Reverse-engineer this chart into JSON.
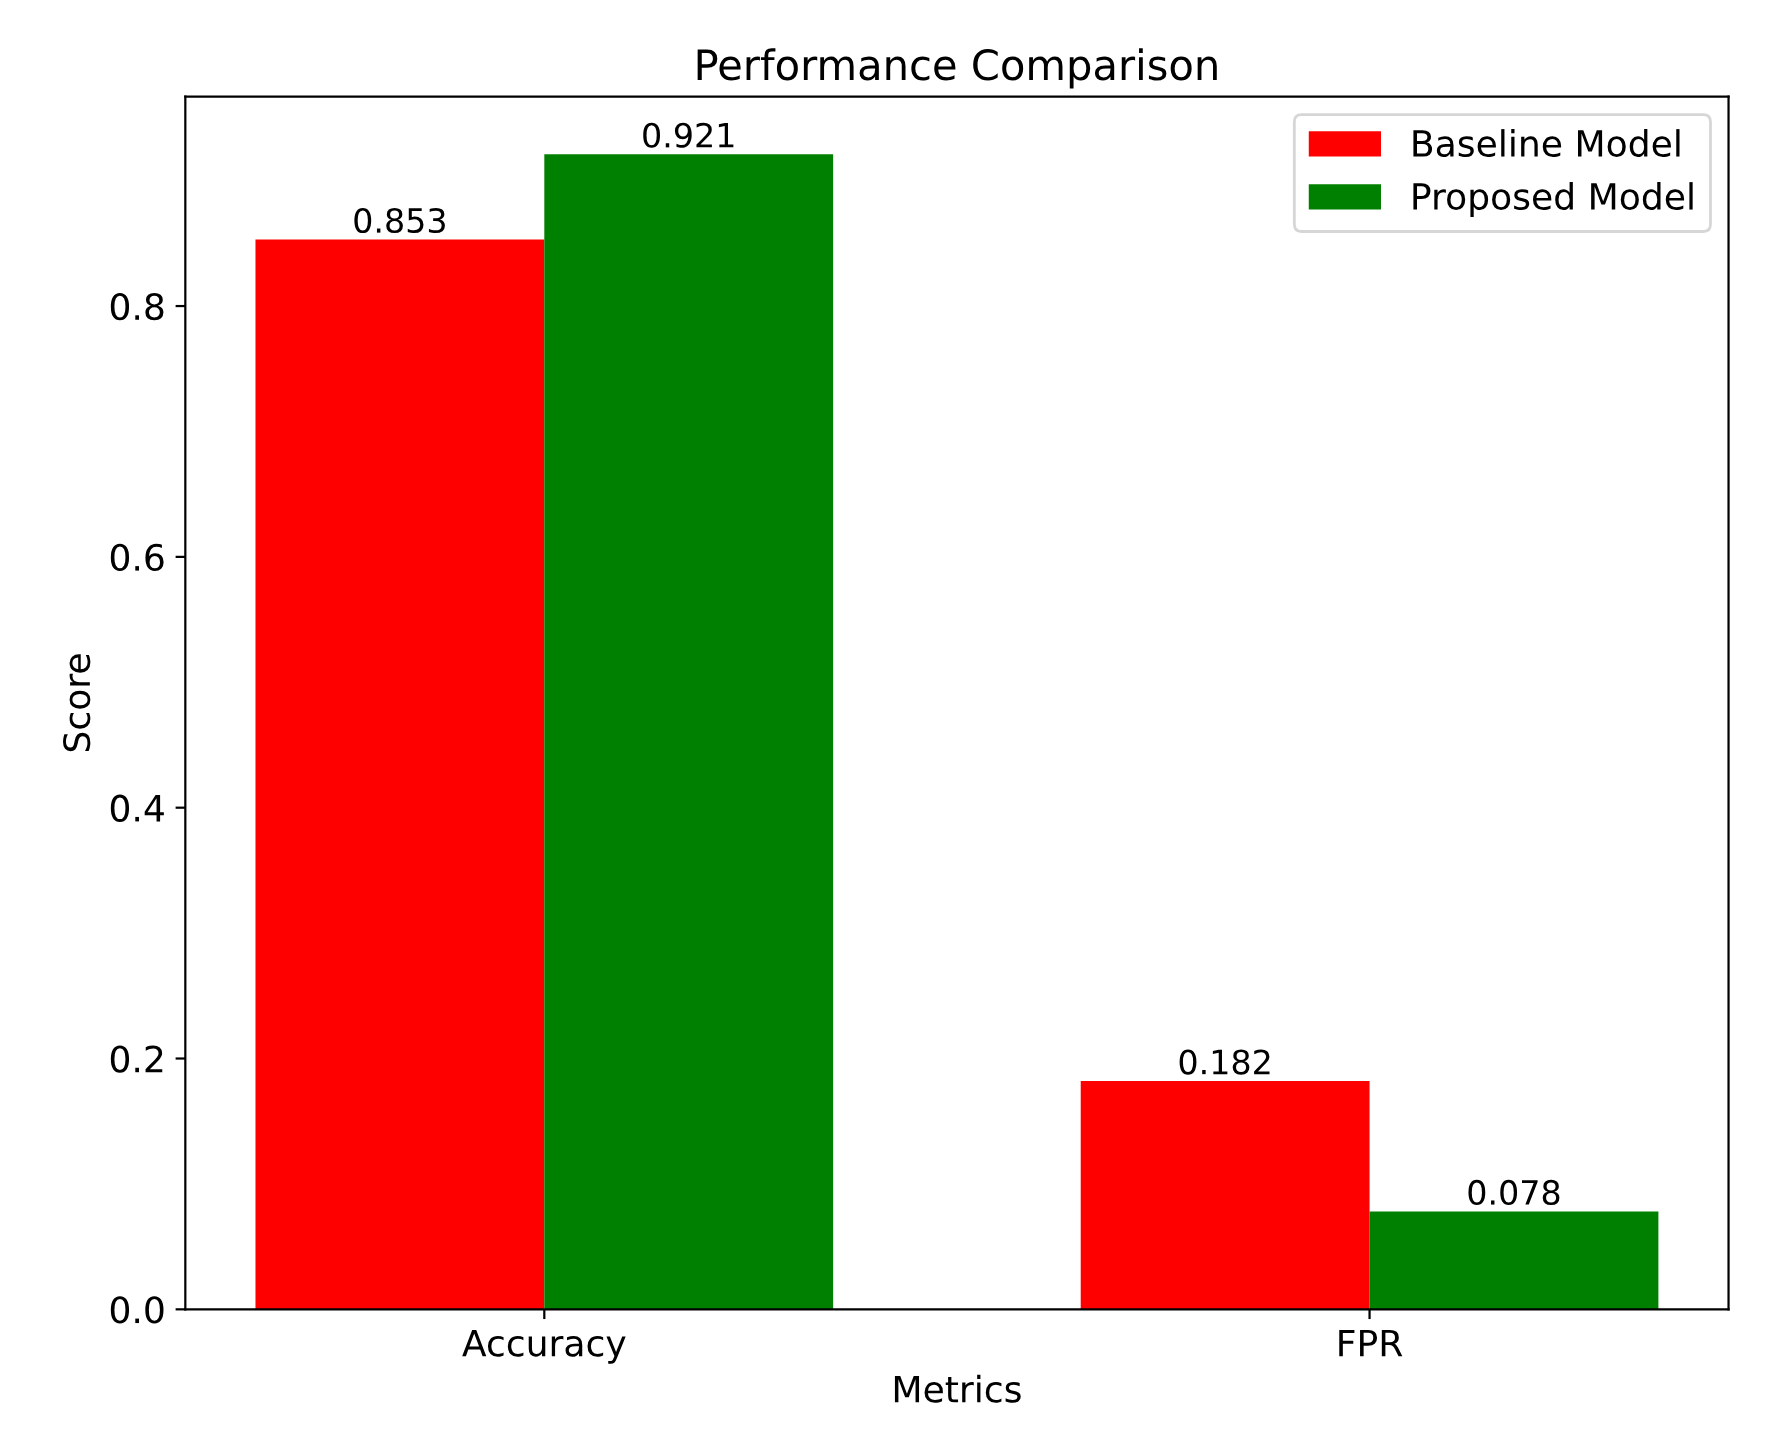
{
  "chart_data": {
    "type": "bar",
    "title": "Performance Comparison",
    "xlabel": "Metrics",
    "ylabel": "Score",
    "categories": [
      "Accuracy",
      "FPR"
    ],
    "series": [
      {
        "name": "Baseline Model",
        "color": "#ff0000",
        "values": [
          0.853,
          0.182
        ]
      },
      {
        "name": "Proposed Model",
        "color": "#008000",
        "values": [
          0.921,
          0.078
        ]
      }
    ],
    "ylim": [
      0,
      0.967
    ],
    "yticks": [
      {
        "value": 0,
        "label": "0.0"
      },
      0.2,
      0.4,
      0.6,
      0.8
    ],
    "data_labels": true,
    "legend": "top right",
    "grid": false
  }
}
